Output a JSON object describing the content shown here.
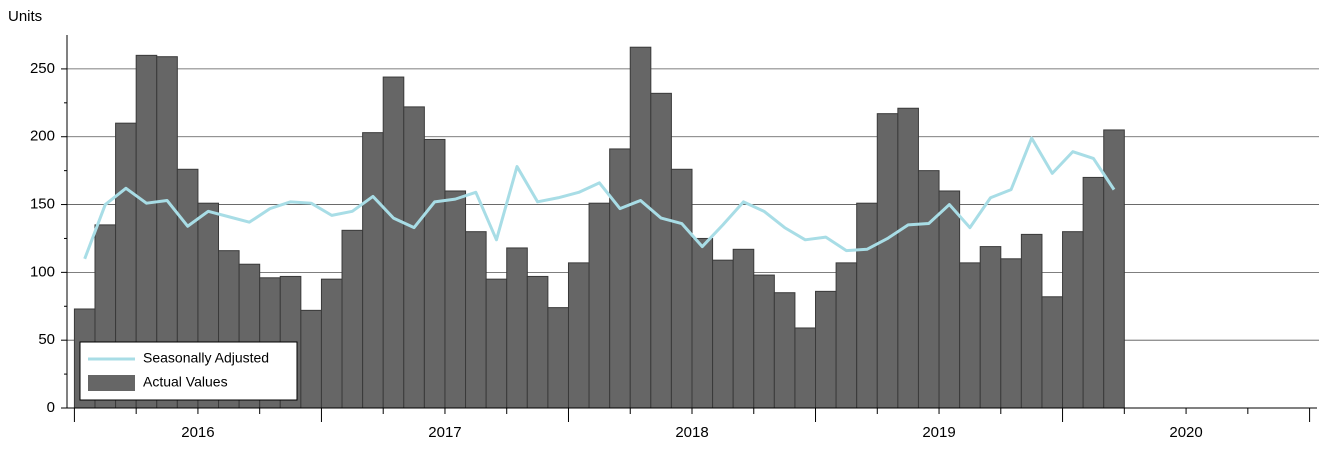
{
  "chart_data": {
    "type": "bar-line",
    "y_label": "Units",
    "x": [
      2016,
      2016.0833,
      2016.1667,
      2016.25,
      2016.3333,
      2016.4167,
      2016.5,
      2016.5833,
      2016.6667,
      2016.75,
      2016.8333,
      2016.9167,
      2017,
      2017.0833,
      2017.1667,
      2017.25,
      2017.3333,
      2017.4167,
      2017.5,
      2017.5833,
      2017.6667,
      2017.75,
      2017.8333,
      2017.9167,
      2018,
      2018.0833,
      2018.1667,
      2018.25,
      2018.3333,
      2018.4167,
      2018.5,
      2018.5833,
      2018.6667,
      2018.75,
      2018.8333,
      2018.9167,
      2019,
      2019.0833,
      2019.1667,
      2019.25,
      2019.3333,
      2019.4167,
      2019.5,
      2019.5833,
      2019.6667,
      2019.75,
      2019.8333,
      2019.9167,
      2020,
      2020.0833,
      2020.1667
    ],
    "series": [
      {
        "name": "Actual Values",
        "type": "bar",
        "color": "#666666",
        "values": [
          73,
          135,
          210,
          260,
          259,
          176,
          151,
          116,
          106,
          96,
          97,
          72,
          95,
          131,
          203,
          244,
          222,
          198,
          160,
          130,
          95,
          118,
          97,
          74,
          107,
          151,
          191,
          266,
          232,
          176,
          125,
          109,
          117,
          98,
          85,
          59,
          86,
          107,
          151,
          217,
          221,
          175,
          160,
          107,
          119,
          110,
          128,
          82,
          130,
          170,
          205
        ]
      },
      {
        "name": "Seasonally Adjusted",
        "type": "line",
        "color": "#a8dde6",
        "values": [
          110,
          150,
          162,
          151,
          153,
          134,
          145,
          141,
          137,
          147,
          152,
          151,
          142,
          145,
          156,
          140,
          133,
          152,
          154,
          159,
          124,
          178,
          152,
          155,
          159,
          166,
          147,
          153,
          140,
          136,
          119,
          135,
          152,
          145,
          133,
          124,
          126,
          116,
          117,
          125,
          135,
          136,
          150,
          133,
          155,
          161,
          199,
          173,
          189,
          184,
          161
        ]
      }
    ],
    "xlim": [
      2015.97,
      2021.03
    ],
    "xticks": [
      {
        "value": 2016.5,
        "label": "2016"
      },
      {
        "value": 2017.5,
        "label": "2017"
      },
      {
        "value": 2018.5,
        "label": "2018"
      },
      {
        "value": 2019.5,
        "label": "2019"
      },
      {
        "value": 2020.5,
        "label": "2020"
      }
    ],
    "ylim": [
      0,
      275
    ],
    "yticks": [
      0,
      50,
      100,
      150,
      200,
      250
    ],
    "grid": true,
    "legend": "lower left"
  }
}
